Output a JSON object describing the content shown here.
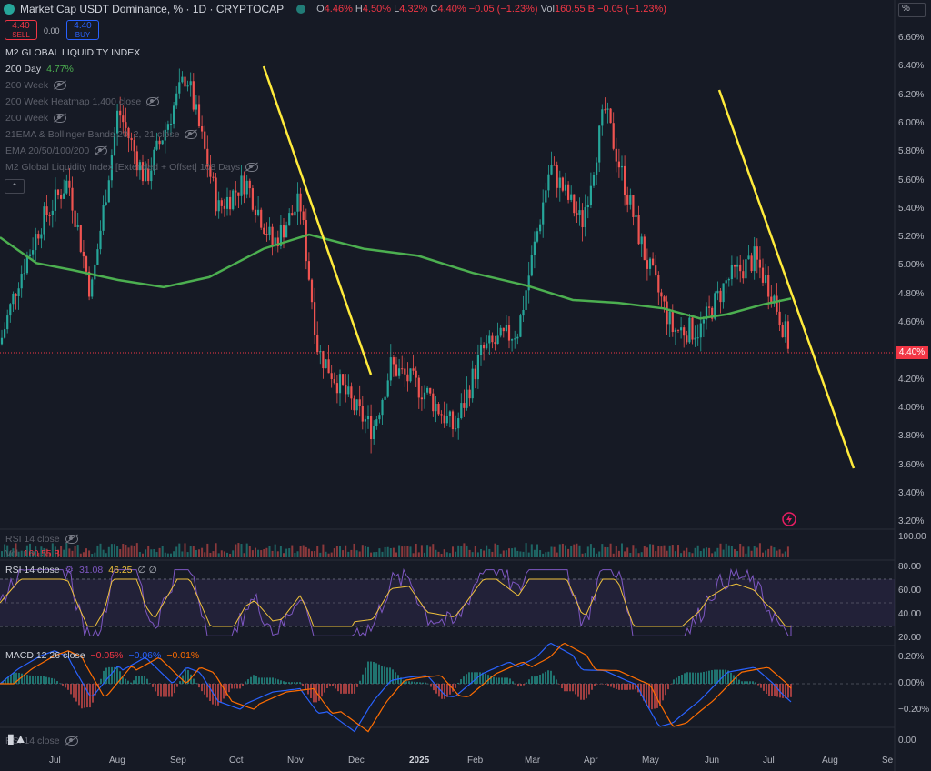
{
  "header": {
    "symbol_title": "Market Cap USDT Dominance, % · 1D · CRYPTOCAP",
    "ohlc": {
      "o_label": "O",
      "o_val": "4.46%",
      "h_label": "H",
      "h_val": "4.50%",
      "l_label": "L",
      "l_val": "4.32%",
      "c_label": "C",
      "c_val": "4.40%",
      "change": "−0.05 (−1.23%)",
      "vol_label": "Vol",
      "vol_val": "160.55 B",
      "vol_change": "−0.05 (−1.23%)"
    },
    "scale_unit": "%"
  },
  "trade": {
    "sell_price": "4.40",
    "sell_label": "SELL",
    "spread": "0.00",
    "buy_price": "4.40",
    "buy_label": "BUY"
  },
  "indicators": [
    {
      "name": "M2 GLOBAL LIQUIDITY INDEX",
      "value": "",
      "muted": false
    },
    {
      "name": "200 Day",
      "value": "4.77%",
      "muted": false
    },
    {
      "name": "200 Week",
      "value": "",
      "muted": true
    },
    {
      "name": "200 Week Heatmap 1,400 close",
      "value": "",
      "muted": true
    },
    {
      "name": "200 Week",
      "value": "",
      "muted": true
    },
    {
      "name": "21EMA & Bollinger Bands 20, 2, 21 close",
      "value": "",
      "muted": true
    },
    {
      "name": "EMA 20/50/100/200",
      "value": "",
      "muted": true
    },
    {
      "name": "M2 Global Liquidity Index [Extended + Offset] 108 Days",
      "value": "",
      "muted": true
    }
  ],
  "price_axis": {
    "ticks": [
      "6.60%",
      "6.40%",
      "6.20%",
      "6.00%",
      "5.80%",
      "5.60%",
      "5.40%",
      "5.20%",
      "5.00%",
      "4.80%",
      "4.60%",
      "4.40%",
      "4.20%",
      "4.00%",
      "3.80%",
      "3.60%",
      "3.40%",
      "3.20%"
    ],
    "current": "4.40%",
    "current_value": 4.4
  },
  "time_axis": {
    "labels": [
      "Jul",
      "Aug",
      "Sep",
      "Oct",
      "Nov",
      "Dec",
      "2025",
      "Feb",
      "Mar",
      "Apr",
      "May",
      "Jun",
      "Jul",
      "Aug",
      "Se"
    ]
  },
  "volume_pane": {
    "title": "RSI 14 close",
    "vol_label": "Vol",
    "vol_value": "160.55 B",
    "axis_top": "100.00"
  },
  "rsi_pane": {
    "title": "RSI 14 close",
    "rsi_value": "31.08",
    "ma_value": "46.25",
    "ticks": [
      "80.00",
      "60.00",
      "40.00",
      "20.00"
    ]
  },
  "macd_pane": {
    "title": "MACD 12 26 close",
    "hist": "−0.05%",
    "macd": "−0.06%",
    "signal": "−0.01%",
    "ticks": [
      "0.20%",
      "0.00%",
      "−0.20%"
    ]
  },
  "bottom_pane": {
    "title": "RSI 14 close",
    "axis": "0.00"
  },
  "colors": {
    "up": "#26a69a",
    "down": "#ef5350",
    "ma200": "#4caf50",
    "trendline": "#ffeb3b",
    "rsi": "#7e57c2",
    "rsi_ma": "#f0c23b",
    "macd": "#2962ff",
    "signal": "#ff6d00",
    "price_tag": "#f23645"
  }
}
